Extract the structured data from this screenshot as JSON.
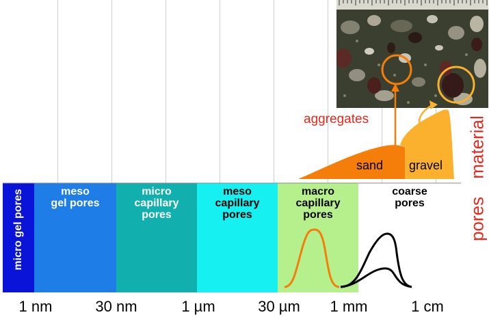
{
  "axis": {
    "ticks": [
      "1 nm",
      "30 nm",
      "1 µm",
      "30 µm",
      "1 mm",
      "1 cm"
    ]
  },
  "side_labels": {
    "material": "material",
    "pores": "pores"
  },
  "bands": [
    {
      "label": "micro gel pores",
      "color": "#0a14d8"
    },
    {
      "label": "meso\ngel pores",
      "color": "#1e7de6"
    },
    {
      "label": "micro\ncapillary\npores",
      "color": "#11b0ae"
    },
    {
      "label": "meso\ncapillary\npores",
      "color": "#17f0f0"
    },
    {
      "label": "macro\ncapillary\npores",
      "color": "#b5f08c"
    },
    {
      "label": "coarse\npores",
      "color": "#ffffff"
    }
  ],
  "material": {
    "aggregates_label": "aggregates",
    "sand_label": "sand",
    "gravel_label": "gravel",
    "sand_color": "#f57d0a",
    "gravel_color": "#fbb12e",
    "aggregates_color": "#e8281c"
  },
  "distribution_colors": {
    "macro": "#f57d0a",
    "coarse": "#000000"
  }
}
